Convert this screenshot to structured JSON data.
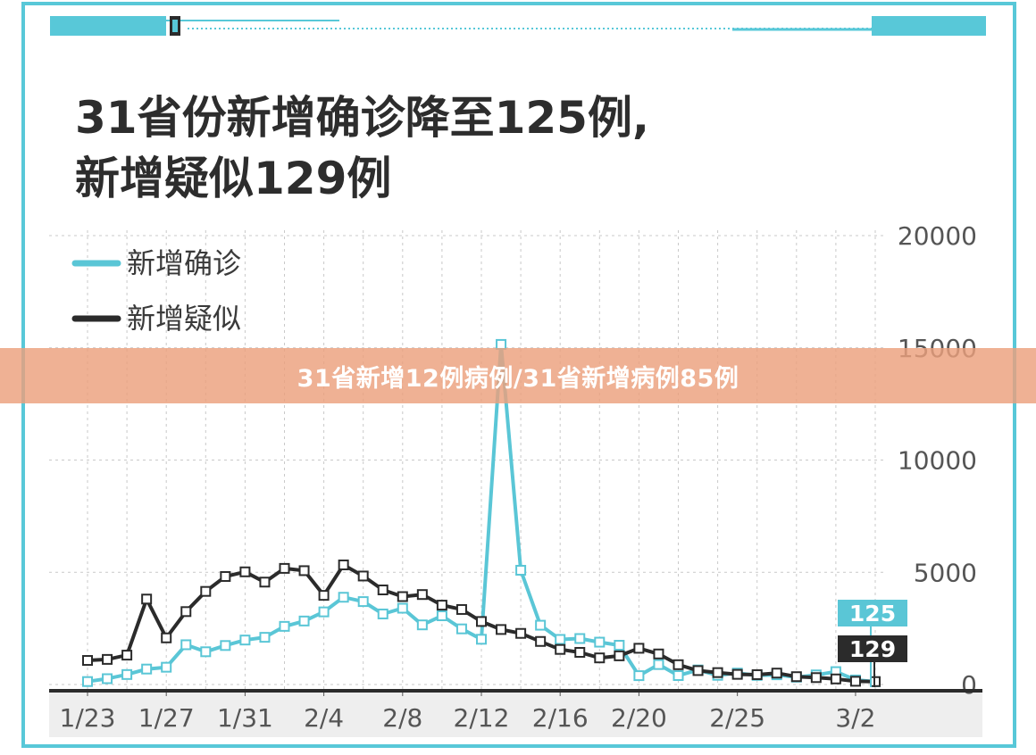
{
  "title_lines": [
    "31省份新增确诊降至125例,",
    "新增疑似129例"
  ],
  "banner_text": "31省新增12例病例/31省新增病例85例",
  "colors": {
    "frame": "#58c8d8",
    "confirmed": "#5ac6d6",
    "suspected": "#2b2b2b",
    "grid": "#c9c9c9",
    "axis_band": "#eeeeee",
    "banner": "#eca07d"
  },
  "chart_data": {
    "type": "line",
    "title": "31省份新增确诊降至125例,新增疑似129例",
    "xlabel": "",
    "ylabel": "",
    "ylim": [
      0,
      20000
    ],
    "yticks": [
      0,
      5000,
      10000,
      15000,
      20000
    ],
    "y_axis_position": "right",
    "grid": true,
    "legend": "top-left",
    "x_ticks": [
      {
        "label": "1/23",
        "index": 0
      },
      {
        "label": "1/27",
        "index": 4
      },
      {
        "label": "1/31",
        "index": 8
      },
      {
        "label": "2/4",
        "index": 12
      },
      {
        "label": "2/8",
        "index": 16
      },
      {
        "label": "2/12",
        "index": 20
      },
      {
        "label": "2/16",
        "index": 24
      },
      {
        "label": "2/20",
        "index": 28
      },
      {
        "label": "2/25",
        "index": 33
      },
      {
        "label": "3/2",
        "index": 39
      }
    ],
    "series": [
      {
        "name": "新增确诊",
        "color": "#5ac6d6",
        "end_label": "125",
        "values": [
          131,
          259,
          444,
          688,
          769,
          1771,
          1459,
          1737,
          1981,
          2102,
          2590,
          2829,
          3235,
          3887,
          3694,
          3143,
          3399,
          2656,
          3062,
          2478,
          2015,
          15152,
          5090,
          2641,
          2009,
          2048,
          1886,
          1749,
          394,
          889,
          397,
          648,
          409,
          508,
          406,
          433,
          327,
          427,
          573,
          202,
          125
        ]
      },
      {
        "name": "新增疑似",
        "color": "#2b2b2b",
        "end_label": "129",
        "values": [
          1072,
          1118,
          1309,
          3806,
          2077,
          3248,
          4148,
          4812,
          5019,
          4562,
          5173,
          5072,
          3971,
          5328,
          4833,
          4214,
          3916,
          4008,
          3536,
          3342,
          2807,
          2450,
          2277,
          1918,
          1563,
          1432,
          1185,
          1277,
          1614,
          1361,
          882,
          620,
          530,
          452,
          439,
          508,
          349,
          307,
          248,
          143,
          129
        ]
      }
    ]
  }
}
